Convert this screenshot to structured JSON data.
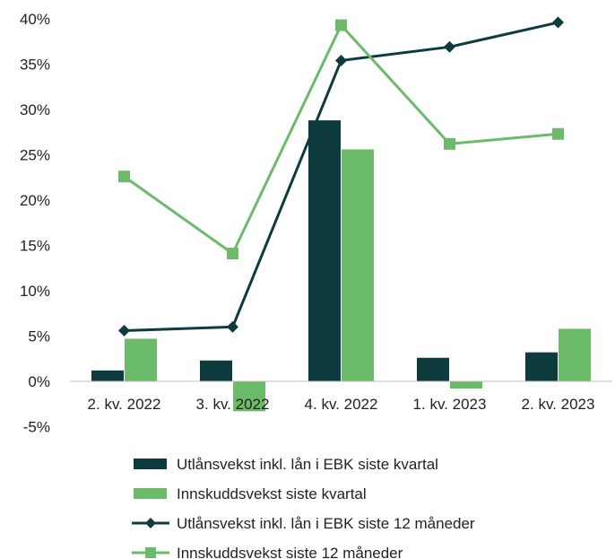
{
  "chart_data": {
    "type": "bar",
    "title": "",
    "xlabel": "",
    "ylabel": "",
    "ylim": [
      -5,
      40
    ],
    "yticks": [
      "-5%",
      "0%",
      "5%",
      "10%",
      "15%",
      "20%",
      "25%",
      "30%",
      "35%",
      "40%"
    ],
    "categories": [
      "2. kv. 2022",
      "3. kv. 2022",
      "4. kv. 2022",
      "1. kv. 2023",
      "2. kv. 2023"
    ],
    "series": [
      {
        "name": "Utlånsvekst inkl. lån i EBK siste kvartal",
        "kind": "bar",
        "color": "#0d3b3e",
        "values": [
          1.2,
          2.3,
          28.8,
          2.6,
          3.2
        ]
      },
      {
        "name": "Innskuddsvekst siste kvartal",
        "kind": "bar",
        "color": "#6cbb6b",
        "values": [
          4.7,
          -3.3,
          25.6,
          -0.8,
          5.8
        ]
      },
      {
        "name": "Utlånsvekst inkl. lån i EBK siste 12 måneder",
        "kind": "line",
        "marker": "diamond",
        "color": "#0d3b3e",
        "values": [
          5.6,
          6.0,
          35.4,
          36.9,
          39.6
        ]
      },
      {
        "name": "Innskuddsvekst siste 12 måneder",
        "kind": "line",
        "marker": "square",
        "color": "#6cbb6b",
        "values": [
          22.6,
          14.1,
          39.3,
          26.2,
          27.3
        ]
      }
    ],
    "grid": false,
    "legend_position": "bottom"
  }
}
